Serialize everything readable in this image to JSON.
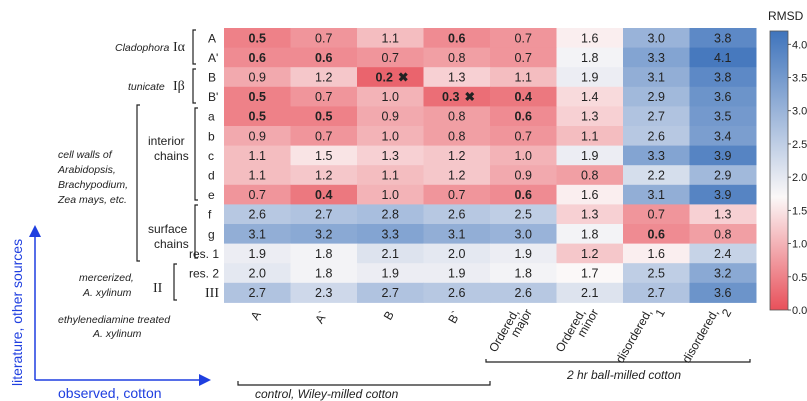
{
  "chart_data": {
    "type": "heatmap",
    "columns": [
      "A",
      "A`",
      "B",
      "B`",
      "Ordered, major",
      "Ordered, minor",
      "disordered, 1",
      "disordered, 2"
    ],
    "rows": [
      "A",
      "A'",
      "B",
      "B'",
      "a",
      "b",
      "c",
      "d",
      "e",
      "f",
      "g",
      "res. 1",
      "res. 2",
      "III"
    ],
    "values": [
      [
        0.5,
        0.7,
        1.1,
        0.6,
        0.7,
        1.6,
        3.0,
        3.8
      ],
      [
        0.6,
        0.6,
        0.7,
        0.8,
        0.7,
        1.8,
        3.3,
        4.1
      ],
      [
        0.9,
        1.2,
        0.2,
        1.3,
        1.1,
        1.9,
        3.1,
        3.8
      ],
      [
        0.5,
        0.7,
        1.0,
        0.3,
        0.4,
        1.4,
        2.9,
        3.6
      ],
      [
        0.5,
        0.5,
        0.9,
        0.8,
        0.6,
        1.3,
        2.7,
        3.5
      ],
      [
        0.9,
        0.7,
        1.0,
        0.8,
        0.7,
        1.1,
        2.6,
        3.4
      ],
      [
        1.1,
        1.5,
        1.3,
        1.2,
        1.0,
        1.9,
        3.3,
        3.9
      ],
      [
        1.1,
        1.2,
        1.1,
        1.2,
        0.9,
        0.8,
        2.2,
        2.9
      ],
      [
        0.7,
        0.4,
        1.0,
        0.7,
        0.6,
        1.6,
        3.1,
        3.9
      ],
      [
        2.6,
        2.7,
        2.8,
        2.6,
        2.5,
        1.3,
        0.7,
        1.3
      ],
      [
        3.1,
        3.2,
        3.3,
        3.1,
        3.0,
        1.8,
        0.6,
        0.8
      ],
      [
        1.9,
        1.8,
        2.1,
        2.0,
        1.9,
        1.2,
        1.6,
        2.4
      ],
      [
        2.0,
        1.8,
        1.9,
        1.9,
        1.8,
        1.7,
        2.5,
        3.2
      ],
      [
        2.7,
        2.3,
        2.7,
        2.6,
        2.6,
        2.1,
        2.7,
        3.6
      ]
    ],
    "bold_cells": [
      [
        0,
        0
      ],
      [
        0,
        3
      ],
      [
        1,
        0
      ],
      [
        1,
        1
      ],
      [
        2,
        2
      ],
      [
        3,
        0
      ],
      [
        3,
        3
      ],
      [
        3,
        4
      ],
      [
        4,
        0
      ],
      [
        4,
        1
      ],
      [
        4,
        4
      ],
      [
        8,
        1
      ],
      [
        8,
        4
      ],
      [
        10,
        6
      ]
    ],
    "cross_cells": [
      [
        2,
        2
      ],
      [
        3,
        3
      ]
    ],
    "cross_symbol": "✖",
    "colorbar": {
      "title": "RMSD",
      "min": 0.0,
      "max": 4.2,
      "ticks": [
        "0.0",
        "0.5",
        "1.0",
        "1.5",
        "2.0",
        "2.5",
        "3.0",
        "3.5",
        "4.0"
      ],
      "colors": {
        "low": "#e8505a",
        "mid": "#fbf8f8",
        "high": "#3f74bc"
      },
      "mid_value": 1.7
    },
    "column_groups": [
      {
        "label": "control, Wiley-milled cotton"
      },
      {
        "label": "2 hr ball-milled cotton"
      }
    ],
    "row_group_labels": {
      "cladophora": "Cladophora",
      "i_alpha": "Iα",
      "tunicate": "tunicate",
      "i_beta": "Iβ",
      "cell_walls_1": "cell walls of",
      "cell_walls_2": "Arabidopsis,",
      "cell_walls_3": "Brachypodium,",
      "cell_walls_4": "Zea mays, etc.",
      "interior_1": "interior",
      "interior_2": "chains",
      "surface_1": "surface",
      "surface_2": "chains",
      "mercerized_1": "mercerized,",
      "mercerized_2": "A. xylinum",
      "ii": "II",
      "ethylene_1": "ethylenediamine treated",
      "ethylene_2": "A. xylinum"
    },
    "axis_labels": {
      "y": "literature, other sources",
      "x": "observed, cotton"
    }
  }
}
